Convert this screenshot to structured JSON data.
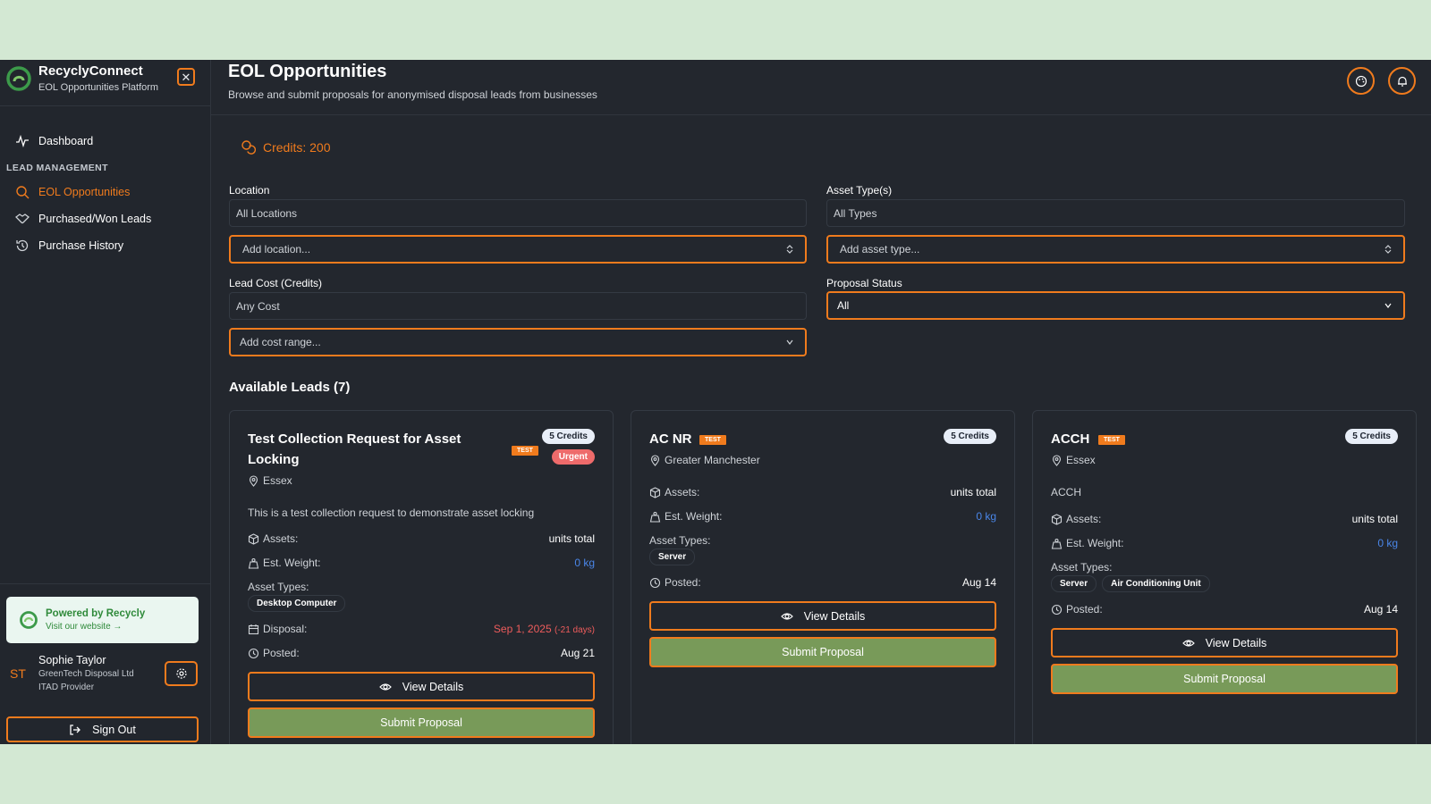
{
  "brand": {
    "title": "RecyclyConnect",
    "subtitle": "EOL Opportunities Platform"
  },
  "sidebar": {
    "dashboard": "Dashboard",
    "section": "LEAD MANAGEMENT",
    "items": [
      {
        "label": "EOL Opportunities",
        "icon": "search-icon",
        "active": true
      },
      {
        "label": "Purchased/Won Leads",
        "icon": "handshake-icon",
        "active": false
      },
      {
        "label": "Purchase History",
        "icon": "history-icon",
        "active": false
      }
    ],
    "powered_title": "Powered by Recycly",
    "powered_link": "Visit our website →",
    "user": {
      "initials": "ST",
      "name": "Sophie Taylor",
      "company": "GreenTech Disposal Ltd",
      "role": "ITAD Provider"
    },
    "sign_out": "Sign Out"
  },
  "header": {
    "title": "EOL Opportunities",
    "subtitle": "Browse and submit proposals for anonymised disposal leads from businesses"
  },
  "credits": "Credits: 200",
  "filters": {
    "location": {
      "label": "Location",
      "value": "All Locations",
      "select": "Add location..."
    },
    "asset_type": {
      "label": "Asset Type(s)",
      "value": "All Types",
      "select": "Add asset type..."
    },
    "lead_cost": {
      "label": "Lead Cost (Credits)",
      "value": "Any Cost",
      "select": "Add cost range..."
    },
    "proposal_status": {
      "label": "Proposal Status",
      "value": "All"
    }
  },
  "leads_title": "Available Leads (7)",
  "common": {
    "assets_label": "Assets:",
    "weight_label": "Est. Weight:",
    "asset_types_label": "Asset Types:",
    "disposal_label": "Disposal:",
    "posted_label": "Posted:",
    "view_details": "View Details",
    "submit_proposal": "Submit Proposal",
    "test_badge": "TEST"
  },
  "leads": [
    {
      "title": "Test Collection Request for Asset Locking",
      "credits": "5 Credits",
      "urgent": "Urgent",
      "location": "Essex",
      "description": "This is a test collection request to demonstrate asset locking",
      "assets": "units total",
      "weight": "0 kg",
      "asset_types": [
        "Desktop Computer"
      ],
      "disposal": "Sep 1, 2025",
      "disposal_note": "(-21 days)",
      "posted": "Aug 21"
    },
    {
      "title": "AC NR",
      "credits": "5 Credits",
      "location": "Greater Manchester",
      "assets": "units total",
      "weight": "0 kg",
      "asset_types": [
        "Server"
      ],
      "posted": "Aug 14"
    },
    {
      "title": "ACCH",
      "credits": "5 Credits",
      "location": "Essex",
      "description": "ACCH",
      "assets": "units total",
      "weight": "0 kg",
      "asset_types": [
        "Server",
        "Air Conditioning Unit"
      ],
      "posted": "Aug 14"
    }
  ],
  "colors": {
    "accent": "#f07b1d",
    "submit": "#789a59",
    "background": "#23272e"
  }
}
